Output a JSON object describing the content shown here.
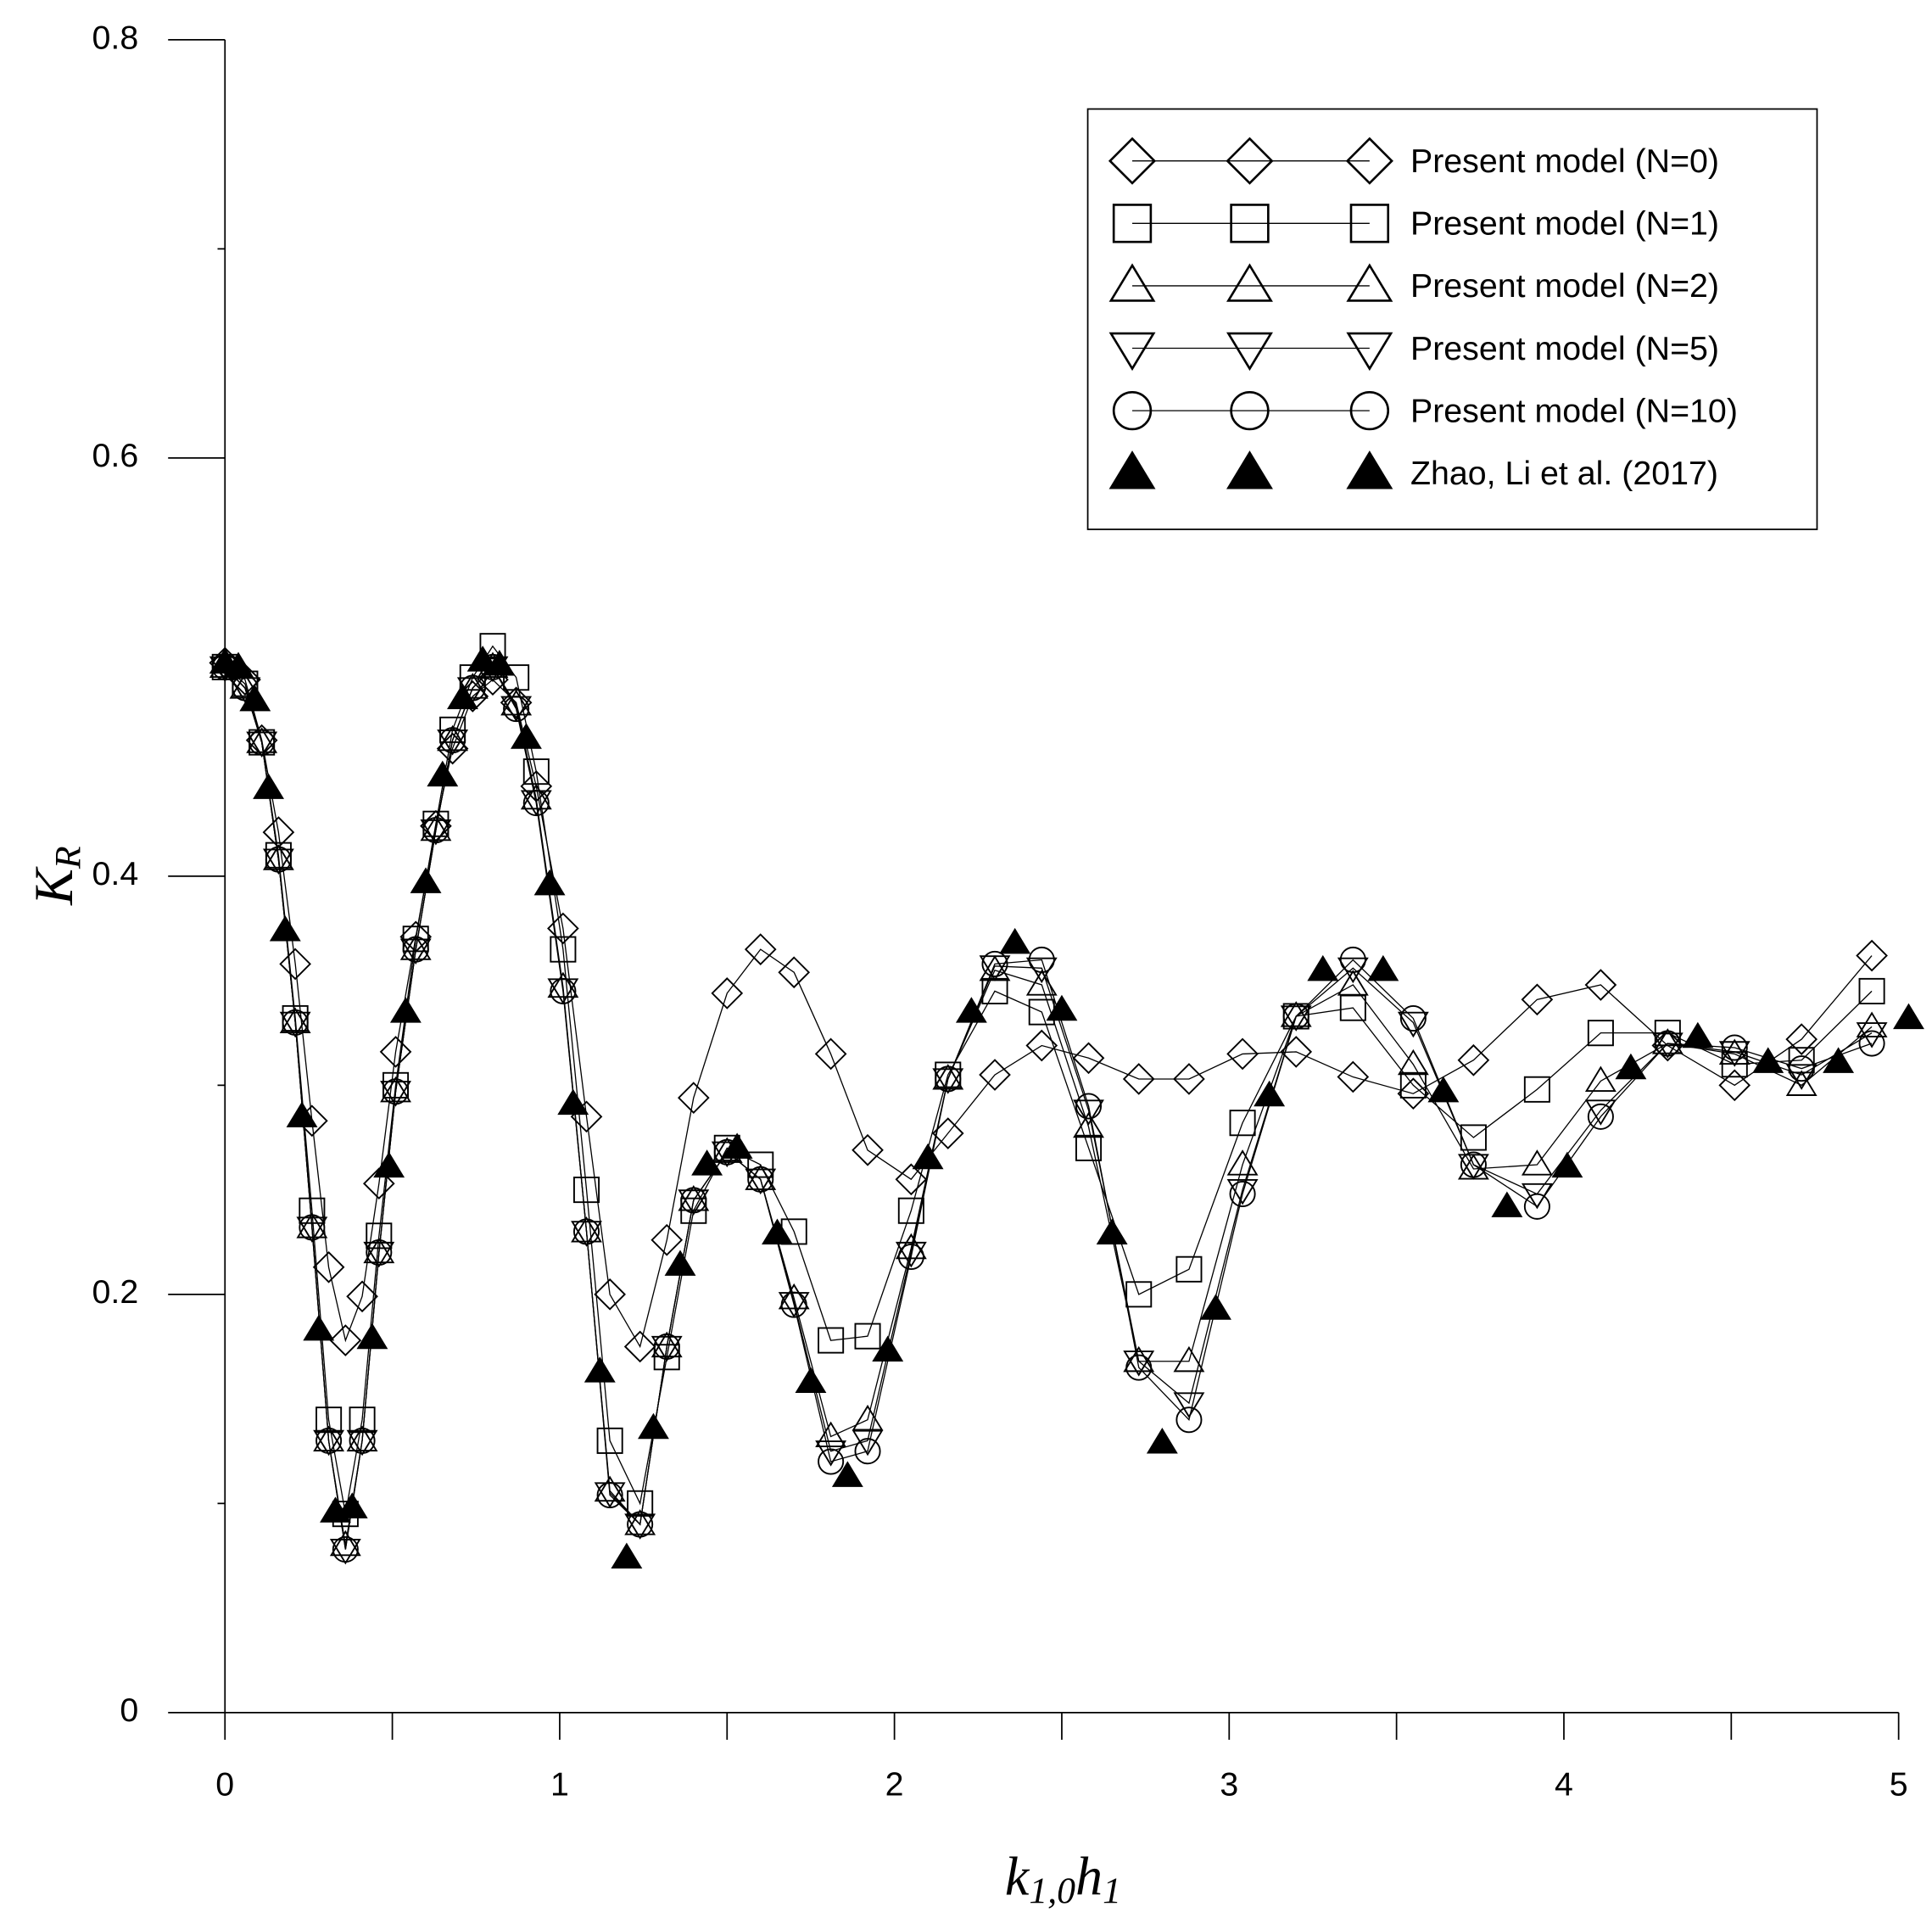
{
  "chart_data": {
    "type": "line",
    "xlabel": [
      "k",
      "1,0",
      "h",
      "1"
    ],
    "ylabel": [
      "K",
      "R"
    ],
    "xlim": [
      0,
      5
    ],
    "ylim": [
      0,
      0.8
    ],
    "xticks": [
      0,
      1,
      2,
      3,
      4,
      5
    ],
    "yticks": [
      0,
      0.2,
      0.4,
      0.6,
      0.8
    ],
    "legend": "upper right",
    "series": [
      {
        "name": "Present model (N=0)",
        "marker": "diamond",
        "line": true,
        "color": "#000000",
        "x": [
          0,
          0.06,
          0.11,
          0.16,
          0.21,
          0.26,
          0.31,
          0.36,
          0.41,
          0.46,
          0.51,
          0.57,
          0.63,
          0.68,
          0.74,
          0.8,
          0.87,
          0.93,
          1.01,
          1.08,
          1.15,
          1.24,
          1.32,
          1.4,
          1.5,
          1.6,
          1.7,
          1.81,
          1.92,
          2.05,
          2.16,
          2.3,
          2.44,
          2.58,
          2.73,
          2.88,
          3.04,
          3.2,
          3.37,
          3.55,
          3.73,
          3.92,
          4.11,
          4.31,
          4.51,
          4.71,
          4.92
        ],
        "values": [
          0.502,
          0.494,
          0.465,
          0.421,
          0.358,
          0.283,
          0.213,
          0.178,
          0.199,
          0.253,
          0.316,
          0.371,
          0.424,
          0.461,
          0.486,
          0.494,
          0.483,
          0.443,
          0.375,
          0.285,
          0.2,
          0.175,
          0.226,
          0.294,
          0.344,
          0.365,
          0.354,
          0.315,
          0.269,
          0.255,
          0.277,
          0.305,
          0.319,
          0.313,
          0.303,
          0.303,
          0.315,
          0.316,
          0.304,
          0.296,
          0.312,
          0.341,
          0.348,
          0.319,
          0.3,
          0.322,
          0.362
        ]
      },
      {
        "name": "Present model (N=1)",
        "marker": "square",
        "line": true,
        "color": "#000000",
        "x": [
          0,
          0.06,
          0.11,
          0.16,
          0.21,
          0.26,
          0.31,
          0.36,
          0.41,
          0.46,
          0.51,
          0.57,
          0.63,
          0.68,
          0.74,
          0.8,
          0.87,
          0.93,
          1.01,
          1.08,
          1.15,
          1.24,
          1.32,
          1.4,
          1.5,
          1.6,
          1.7,
          1.81,
          1.92,
          2.05,
          2.16,
          2.3,
          2.44,
          2.58,
          2.73,
          2.88,
          3.04,
          3.2,
          3.37,
          3.55,
          3.73,
          3.92,
          4.11,
          4.31,
          4.51,
          4.71,
          4.92
        ],
        "values": [
          0.5,
          0.492,
          0.464,
          0.41,
          0.332,
          0.24,
          0.14,
          0.095,
          0.14,
          0.228,
          0.3,
          0.37,
          0.425,
          0.47,
          0.495,
          0.51,
          0.495,
          0.45,
          0.365,
          0.25,
          0.13,
          0.1,
          0.17,
          0.24,
          0.27,
          0.262,
          0.23,
          0.178,
          0.18,
          0.24,
          0.305,
          0.345,
          0.335,
          0.27,
          0.2,
          0.212,
          0.282,
          0.333,
          0.337,
          0.3,
          0.275,
          0.298,
          0.325,
          0.325,
          0.31,
          0.312,
          0.345
        ]
      },
      {
        "name": "Present model (N=2)",
        "marker": "triangle-up",
        "line": true,
        "color": "#000000",
        "x": [
          0,
          0.06,
          0.11,
          0.16,
          0.21,
          0.26,
          0.31,
          0.36,
          0.41,
          0.46,
          0.51,
          0.57,
          0.63,
          0.68,
          0.74,
          0.8,
          0.87,
          0.93,
          1.01,
          1.08,
          1.15,
          1.24,
          1.32,
          1.4,
          1.5,
          1.6,
          1.7,
          1.81,
          1.92,
          2.05,
          2.16,
          2.3,
          2.44,
          2.58,
          2.73,
          2.88,
          3.04,
          3.2,
          3.37,
          3.55,
          3.73,
          3.92,
          4.11,
          4.31,
          4.51,
          4.71,
          4.92
        ],
        "values": [
          0.5,
          0.49,
          0.464,
          0.408,
          0.33,
          0.232,
          0.13,
          0.08,
          0.13,
          0.22,
          0.297,
          0.365,
          0.422,
          0.465,
          0.49,
          0.5,
          0.482,
          0.437,
          0.347,
          0.23,
          0.106,
          0.09,
          0.175,
          0.245,
          0.268,
          0.255,
          0.198,
          0.132,
          0.14,
          0.222,
          0.303,
          0.355,
          0.348,
          0.28,
          0.168,
          0.168,
          0.262,
          0.333,
          0.348,
          0.31,
          0.26,
          0.262,
          0.302,
          0.32,
          0.315,
          0.3,
          0.328
        ]
      },
      {
        "name": "Present model (N=5)",
        "marker": "triangle-down",
        "line": true,
        "color": "#000000",
        "x": [
          0,
          0.06,
          0.11,
          0.16,
          0.21,
          0.26,
          0.31,
          0.36,
          0.41,
          0.46,
          0.51,
          0.57,
          0.63,
          0.68,
          0.74,
          0.8,
          0.87,
          0.93,
          1.01,
          1.08,
          1.15,
          1.24,
          1.32,
          1.4,
          1.5,
          1.6,
          1.7,
          1.81,
          1.92,
          2.05,
          2.16,
          2.3,
          2.44,
          2.58,
          2.73,
          2.88,
          3.04,
          3.2,
          3.37,
          3.55,
          3.73,
          3.92,
          4.11,
          4.31,
          4.51,
          4.71,
          4.92
        ],
        "values": [
          0.5,
          0.49,
          0.464,
          0.408,
          0.33,
          0.232,
          0.13,
          0.078,
          0.13,
          0.22,
          0.297,
          0.365,
          0.422,
          0.465,
          0.49,
          0.5,
          0.481,
          0.436,
          0.346,
          0.23,
          0.105,
          0.09,
          0.175,
          0.245,
          0.268,
          0.255,
          0.196,
          0.125,
          0.13,
          0.22,
          0.303,
          0.357,
          0.356,
          0.288,
          0.168,
          0.148,
          0.25,
          0.333,
          0.356,
          0.33,
          0.262,
          0.248,
          0.288,
          0.32,
          0.316,
          0.305,
          0.325
        ]
      },
      {
        "name": "Present model (N=10)",
        "marker": "circle",
        "line": true,
        "color": "#000000",
        "x": [
          0,
          0.06,
          0.11,
          0.16,
          0.21,
          0.26,
          0.31,
          0.36,
          0.41,
          0.46,
          0.51,
          0.57,
          0.63,
          0.68,
          0.74,
          0.8,
          0.87,
          0.93,
          1.01,
          1.08,
          1.15,
          1.24,
          1.32,
          1.4,
          1.5,
          1.6,
          1.7,
          1.81,
          1.92,
          2.05,
          2.16,
          2.3,
          2.44,
          2.58,
          2.73,
          2.88,
          3.04,
          3.2,
          3.37,
          3.55,
          3.73,
          3.92,
          4.11,
          4.31,
          4.51,
          4.71,
          4.92
        ],
        "values": [
          0.5,
          0.49,
          0.464,
          0.408,
          0.33,
          0.232,
          0.13,
          0.078,
          0.13,
          0.22,
          0.297,
          0.365,
          0.422,
          0.465,
          0.49,
          0.5,
          0.48,
          0.435,
          0.345,
          0.23,
          0.104,
          0.09,
          0.175,
          0.245,
          0.268,
          0.255,
          0.195,
          0.12,
          0.125,
          0.218,
          0.303,
          0.358,
          0.36,
          0.29,
          0.165,
          0.14,
          0.248,
          0.333,
          0.36,
          0.332,
          0.262,
          0.242,
          0.285,
          0.32,
          0.318,
          0.308,
          0.32
        ]
      },
      {
        "name": "Zhao, Li et al. (2017)",
        "marker": "triangle-filled",
        "line": false,
        "color": "#000000",
        "x": [
          0,
          0.04,
          0.09,
          0.13,
          0.18,
          0.23,
          0.28,
          0.33,
          0.38,
          0.44,
          0.49,
          0.54,
          0.6,
          0.65,
          0.71,
          0.77,
          0.82,
          0.9,
          0.97,
          1.04,
          1.12,
          1.2,
          1.28,
          1.36,
          1.44,
          1.53,
          1.65,
          1.75,
          1.86,
          1.98,
          2.1,
          2.23,
          2.36,
          2.5,
          2.65,
          2.8,
          2.96,
          3.12,
          3.28,
          3.46,
          3.64,
          3.83,
          4.01,
          4.2,
          4.4,
          4.61,
          4.82,
          5.03
        ],
        "values": [
          0.502,
          0.5,
          0.484,
          0.442,
          0.374,
          0.285,
          0.183,
          0.096,
          0.098,
          0.179,
          0.261,
          0.335,
          0.397,
          0.448,
          0.485,
          0.503,
          0.501,
          0.466,
          0.396,
          0.291,
          0.163,
          0.074,
          0.136,
          0.214,
          0.262,
          0.27,
          0.229,
          0.158,
          0.113,
          0.173,
          0.265,
          0.335,
          0.368,
          0.336,
          0.229,
          0.129,
          0.193,
          0.295,
          0.355,
          0.355,
          0.297,
          0.242,
          0.261,
          0.308,
          0.323,
          0.311,
          0.311,
          0.332
        ]
      }
    ]
  }
}
